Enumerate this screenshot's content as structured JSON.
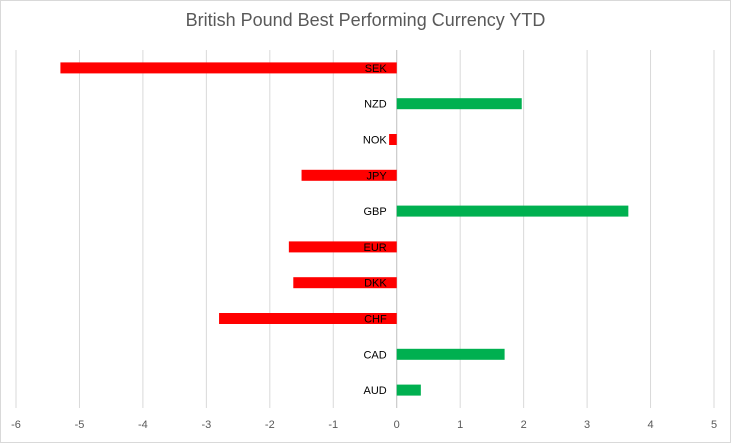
{
  "chart_data": {
    "type": "bar",
    "orientation": "horizontal",
    "title": "British Pound Best Performing Currency YTD",
    "categories": [
      "SEK",
      "NZD",
      "NOK",
      "JPY",
      "GBP",
      "EUR",
      "DKK",
      "CHF",
      "CAD",
      "AUD"
    ],
    "values": [
      -5.3,
      1.97,
      -0.12,
      -1.5,
      3.65,
      -1.7,
      -1.63,
      -2.8,
      1.7,
      0.38
    ],
    "xlim": [
      -6,
      5
    ],
    "xticks": [
      -6,
      -5,
      -4,
      -3,
      -2,
      -1,
      0,
      1,
      2,
      3,
      4,
      5
    ],
    "grid": true,
    "colors": {
      "positive": "#00b050",
      "negative": "#ff0000",
      "grid": "#d9d9d9",
      "axis": "#bfbfbf"
    }
  }
}
